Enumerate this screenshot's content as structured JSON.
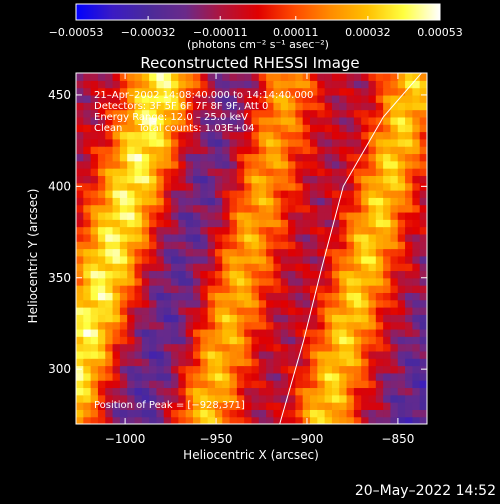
{
  "chart_data": {
    "type": "heatmap",
    "title": "Reconstructed RHESSI Image",
    "xlabel": "Heliocentric X (arcsec)",
    "ylabel": "Heliocentric Y (arcsec)",
    "xlim": [
      -1027,
      -834
    ],
    "ylim": [
      270,
      462
    ],
    "x_ticks": [
      -1000,
      -950,
      -900,
      -850
    ],
    "y_ticks": [
      300,
      350,
      400,
      450
    ],
    "x_tick_labels": [
      "−1000",
      "−950",
      "−900",
      "−850"
    ],
    "y_tick_labels": [
      "300",
      "350",
      "400",
      "450"
    ],
    "colorbar": {
      "min": -0.00053,
      "max": 0.00053,
      "ticks": [
        -0.00053,
        -0.00032,
        -0.00011,
        0.00011,
        0.00032,
        0.00053
      ],
      "tick_labels": [
        "−0.00053",
        "−0.00032",
        "−0.00011",
        "0.00011",
        "0.00032",
        "0.00053"
      ],
      "units_label": "(photons cm⁻² s⁻¹ asec⁻²)",
      "colors": [
        "#0000ff",
        "#3a1bc4",
        "#4b2a9a",
        "#6a2a8a",
        "#b0143c",
        "#e00000",
        "#ff4a00",
        "#ff8c00",
        "#ffc000",
        "#ffff40",
        "#ffffff"
      ]
    },
    "annotations": [
      "21–Apr–2002 14:08:40.000 to 14:14:40.000",
      "Detectors: 3F 5F 6F 7F 8F 9F, Att 0",
      "Energy Range: 12.0 – 25.0 keV",
      "Clean     Total counts: 1.03E+04"
    ],
    "peak_label": "Position of Peak = [−928,371]",
    "peak_position": [
      -928,
      371
    ],
    "limb_curve": [
      [
        -915,
        270
      ],
      [
        -902,
        315
      ],
      [
        -892,
        355
      ],
      [
        -880,
        400
      ],
      [
        -858,
        438
      ],
      [
        -837,
        462
      ]
    ],
    "ridges": [
      {
        "x0": -1030,
        "y0": 290,
        "x1": -978,
        "y1": 462,
        "amp": 0.00053,
        "width": 14
      },
      {
        "x0": -960,
        "y0": 270,
        "x1": -910,
        "y1": 462,
        "amp": 0.0005,
        "width": 13
      },
      {
        "x0": -892,
        "y0": 270,
        "x1": -840,
        "y1": 462,
        "amp": 0.00045,
        "width": 12
      }
    ]
  },
  "footer": {
    "timestamp": "20–May–2022 14:52"
  }
}
